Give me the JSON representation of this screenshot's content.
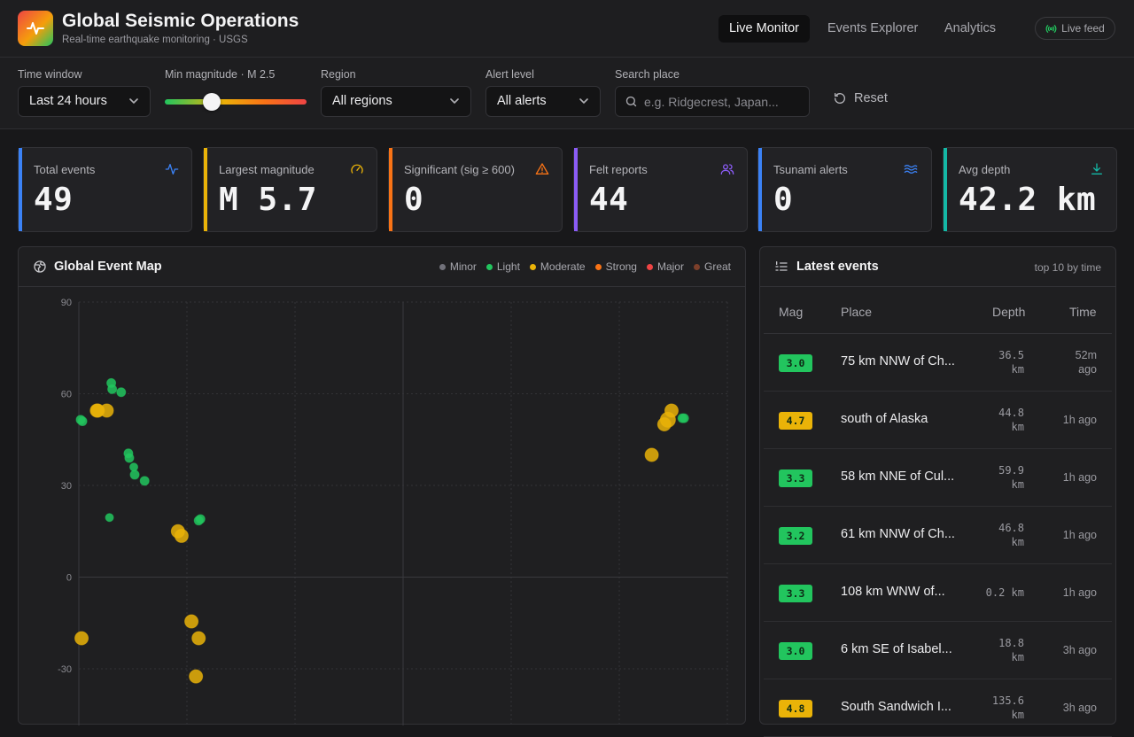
{
  "app": {
    "title": "Global Seismic Operations",
    "subtitle": "Real-time earthquake monitoring · USGS"
  },
  "nav": {
    "items": [
      {
        "label": "Live Monitor",
        "active": true
      },
      {
        "label": "Events Explorer",
        "active": false
      },
      {
        "label": "Analytics",
        "active": false
      }
    ],
    "live_feed_label": "Live feed"
  },
  "filters": {
    "time_window": {
      "label": "Time window",
      "value": "Last 24 hours"
    },
    "min_magnitude": {
      "label": "Min magnitude · M 2.5",
      "value": 2.5
    },
    "region": {
      "label": "Region",
      "value": "All regions"
    },
    "alert_level": {
      "label": "Alert level",
      "value": "All alerts"
    },
    "search": {
      "label": "Search place",
      "placeholder": "e.g. Ridgecrest, Japan..."
    },
    "reset_label": "Reset"
  },
  "kpis": [
    {
      "label": "Total events",
      "value": "49",
      "color": "#3b82f6",
      "icon": "activity-icon"
    },
    {
      "label": "Largest magnitude",
      "value": "M 5.7",
      "color": "#eab308",
      "icon": "gauge-icon"
    },
    {
      "label": "Significant (sig ≥ 600)",
      "value": "0",
      "color": "#f97316",
      "icon": "warning-icon"
    },
    {
      "label": "Felt reports",
      "value": "44",
      "color": "#8b5cf6",
      "icon": "users-icon"
    },
    {
      "label": "Tsunami alerts",
      "value": "0",
      "color": "#3b82f6",
      "icon": "waves-icon"
    },
    {
      "label": "Avg depth",
      "value": "42.2 km",
      "color": "#14b8a6",
      "icon": "download-icon"
    }
  ],
  "map": {
    "title": "Global Event Map",
    "legend": [
      {
        "label": "Minor",
        "color": "#71717a"
      },
      {
        "label": "Light",
        "color": "#22c55e"
      },
      {
        "label": "Moderate",
        "color": "#eab308"
      },
      {
        "label": "Strong",
        "color": "#f97316"
      },
      {
        "label": "Major",
        "color": "#ef4444"
      },
      {
        "label": "Great",
        "color": "#7c3f2a"
      }
    ],
    "y_ticks": [
      "90",
      "60",
      "30",
      "0",
      "-30"
    ],
    "points": [
      {
        "lon": -179,
        "lat": 51.5,
        "mag": 3.0
      },
      {
        "lon": -178,
        "lat": 51,
        "mag": 3.0
      },
      {
        "lon": -170,
        "lat": 54.5,
        "mag": 4.7
      },
      {
        "lon": -169.5,
        "lat": 54.5,
        "mag": 4.6
      },
      {
        "lon": -164.5,
        "lat": 54.5,
        "mag": 4.6
      },
      {
        "lon": -162,
        "lat": 63.5,
        "mag": 3.1
      },
      {
        "lon": -161.5,
        "lat": 61.5,
        "mag": 3.0
      },
      {
        "lon": -156.5,
        "lat": 60.5,
        "mag": 3.1
      },
      {
        "lon": -163,
        "lat": 19.5,
        "mag": 2.7
      },
      {
        "lon": -152.5,
        "lat": 40.5,
        "mag": 3.0
      },
      {
        "lon": -152,
        "lat": 39,
        "mag": 3.0
      },
      {
        "lon": -149.5,
        "lat": 36,
        "mag": 2.9
      },
      {
        "lon": -149,
        "lat": 33.5,
        "mag": 3.1
      },
      {
        "lon": -143.5,
        "lat": 31.5,
        "mag": 3.0
      },
      {
        "lon": -125,
        "lat": 15,
        "mag": 4.5
      },
      {
        "lon": -123,
        "lat": 13.5,
        "mag": 4.6
      },
      {
        "lon": -113.5,
        "lat": 18.5,
        "mag": 3.3
      },
      {
        "lon": -112.5,
        "lat": 19,
        "mag": 3.3
      },
      {
        "lon": -117.5,
        "lat": -14.5,
        "mag": 4.6
      },
      {
        "lon": -113.5,
        "lat": -20,
        "mag": 4.6
      },
      {
        "lon": -115,
        "lat": -32.5,
        "mag": 4.8
      },
      {
        "lon": -178.5,
        "lat": -20,
        "mag": 4.8
      },
      {
        "lon": 138,
        "lat": 40,
        "mag": 4.6
      },
      {
        "lon": 145,
        "lat": 50,
        "mag": 4.6
      },
      {
        "lon": 147,
        "lat": 51.5,
        "mag": 5.7
      },
      {
        "lon": 149,
        "lat": 54.5,
        "mag": 4.7
      },
      {
        "lon": 155,
        "lat": 52,
        "mag": 3.2
      },
      {
        "lon": 156,
        "lat": 52,
        "mag": 3.2
      }
    ]
  },
  "events": {
    "title": "Latest events",
    "subtitle": "top 10 by time",
    "columns": [
      "Mag",
      "Place",
      "Depth",
      "Time"
    ],
    "rows": [
      {
        "mag": "3.0",
        "place": "75 km NNW of Ch...",
        "depth": [
          "36.5",
          "km"
        ],
        "time": [
          "52m",
          "ago"
        ],
        "color": "#22c55e"
      },
      {
        "mag": "4.7",
        "place": "south of Alaska",
        "depth": [
          "44.8",
          "km"
        ],
        "time": [
          "1h ago"
        ],
        "color": "#eab308"
      },
      {
        "mag": "3.3",
        "place": "58 km NNE of Cul...",
        "depth": [
          "59.9",
          "km"
        ],
        "time": [
          "1h ago"
        ],
        "color": "#22c55e"
      },
      {
        "mag": "3.2",
        "place": "61 km NNW of Ch...",
        "depth": [
          "46.8",
          "km"
        ],
        "time": [
          "1h ago"
        ],
        "color": "#22c55e"
      },
      {
        "mag": "3.3",
        "place": "108 km WNW of...",
        "depth": [
          "0.2 km"
        ],
        "time": [
          "1h ago"
        ],
        "color": "#22c55e"
      },
      {
        "mag": "3.0",
        "place": "6 km SE of Isabel...",
        "depth": [
          "18.8",
          "km"
        ],
        "time": [
          "3h ago"
        ],
        "color": "#22c55e"
      },
      {
        "mag": "4.8",
        "place": "South Sandwich I...",
        "depth": [
          "135.6",
          "km"
        ],
        "time": [
          "3h ago"
        ],
        "color": "#eab308"
      }
    ]
  }
}
